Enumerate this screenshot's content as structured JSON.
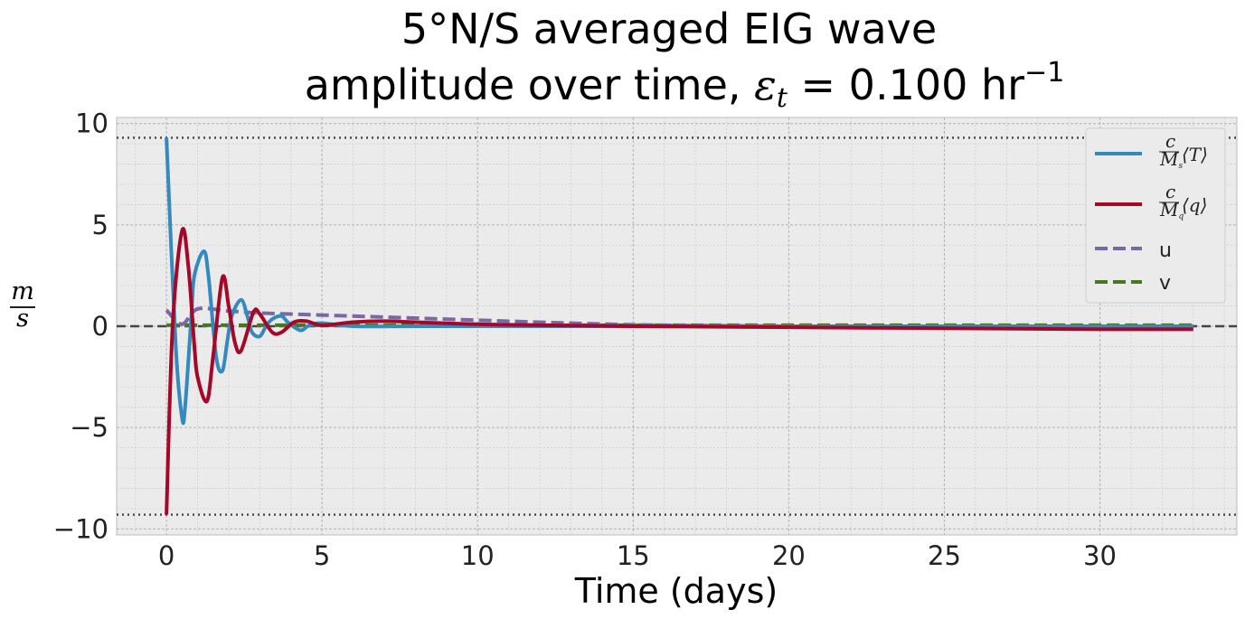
{
  "chart_data": {
    "type": "line",
    "title_line1": "5°N/S averaged EIG wave",
    "title_line2_prefix": "amplitude over time, ",
    "title_eps": "ε",
    "title_eps_sub": "t",
    "title_line2_suffix": " = 0.100 hr",
    "title_exp": "−1",
    "xlabel": "Time (days)",
    "ylabel_num": "m",
    "ylabel_den": "s",
    "xlim": [
      -1.6,
      34.4
    ],
    "ylim": [
      -10.3,
      10.3
    ],
    "xticks": [
      0,
      5,
      10,
      15,
      20,
      25,
      30
    ],
    "yticks": [
      -10,
      -5,
      0,
      5,
      10
    ],
    "ytick_labels": [
      "−10",
      "−5",
      "0",
      "5",
      "10"
    ],
    "grid": true,
    "legend_position": "top-right",
    "reference_lines": [
      {
        "y": 9.3,
        "style": "dotted"
      },
      {
        "y": -9.3,
        "style": "dotted"
      },
      {
        "y": 0,
        "style": "dashed"
      }
    ],
    "series": [
      {
        "name": "c/M_s ⟨T⟩",
        "legend_label": {
          "num": "c",
          "den": "M",
          "den_sub": "s",
          "term": "⟨T⟩"
        },
        "color": "#348ABD",
        "style": "solid",
        "x": [
          0,
          0.3,
          0.5,
          0.6,
          0.8,
          0.9,
          1.2,
          1.35,
          1.6,
          1.8,
          1.95,
          2.1,
          2.4,
          2.6,
          2.75,
          3.0,
          3.2,
          3.4,
          3.7,
          3.9,
          4.3,
          4.6,
          5,
          6,
          8,
          10,
          15,
          20,
          25,
          30,
          33
        ],
        "y": [
          9.3,
          -1,
          -4.5,
          -4.0,
          0.5,
          2.5,
          3.7,
          2.5,
          -1.5,
          -2.2,
          -0.8,
          0.5,
          1.3,
          0.5,
          -0.3,
          -0.5,
          0,
          0.35,
          0.5,
          0.2,
          -0.2,
          0.05,
          0.15,
          0.0,
          0.0,
          0.0,
          0.0,
          0.0,
          0.0,
          0.0,
          0.0
        ]
      },
      {
        "name": "c/M_q ⟨q⟩",
        "legend_label": {
          "num": "c",
          "den": "M",
          "den_sub": "q",
          "term": "⟨q⟩"
        },
        "color": "#A60628",
        "style": "solid",
        "x": [
          0,
          0.2,
          0.5,
          0.7,
          0.9,
          1.0,
          1.3,
          1.5,
          1.8,
          2.0,
          2.2,
          2.4,
          2.8,
          3.0,
          3.4,
          3.7,
          4.1,
          4.5,
          5,
          6,
          7,
          8,
          10,
          12,
          15,
          20,
          25,
          30,
          33
        ],
        "y": [
          -9.3,
          0,
          4.7,
          3.0,
          -1.0,
          -2.5,
          -3.7,
          -1.5,
          2.4,
          1.0,
          -0.8,
          -1.2,
          0.7,
          0.6,
          -0.3,
          -0.3,
          0.2,
          0.25,
          0.05,
          0.2,
          0.25,
          0.2,
          0.1,
          0.05,
          0.0,
          -0.05,
          -0.1,
          -0.15,
          -0.15
        ]
      },
      {
        "name": "u",
        "legend_label": {
          "plain": "u"
        },
        "color": "#7A68A6",
        "style": "dashed",
        "x": [
          0,
          0.5,
          1.0,
          2,
          3,
          4,
          5,
          7,
          10,
          13,
          16,
          20,
          23,
          25,
          30,
          33
        ],
        "y": [
          0.8,
          0.1,
          0.85,
          0.75,
          0.65,
          0.6,
          0.55,
          0.45,
          0.3,
          0.15,
          0.05,
          0.0,
          -0.05,
          -0.05,
          -0.05,
          -0.05
        ]
      },
      {
        "name": "v",
        "legend_label": {
          "plain": "v"
        },
        "color": "#467821",
        "style": "dashed",
        "x": [
          0,
          1,
          2,
          3,
          4,
          5,
          10,
          15,
          20,
          25,
          30,
          33
        ],
        "y": [
          0.05,
          0.05,
          0.05,
          0.05,
          0.05,
          0.05,
          0.05,
          0.05,
          0.05,
          0.05,
          0.05,
          0.05
        ]
      }
    ]
  }
}
